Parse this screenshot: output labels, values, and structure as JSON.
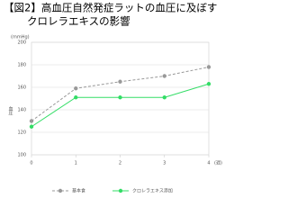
{
  "chart_data": {
    "type": "line",
    "title": [
      "【図2】高血圧自然発症ラットの血圧に及ぼす",
      "クロレラエキスの影響"
    ],
    "y_unit": "(mmHg)",
    "y_label": "血圧",
    "x_unit": "(週)",
    "x": [
      0,
      1,
      2,
      3,
      4
    ],
    "xlim": [
      0,
      4
    ],
    "xticks": [
      0,
      1,
      2,
      3,
      4
    ],
    "ylim": [
      100,
      200
    ],
    "yticks": [
      100,
      120,
      140,
      160,
      180,
      200
    ],
    "grid": true,
    "legend": "bottom",
    "series": [
      {
        "name": "基本食",
        "color": "#999999",
        "dashed": true,
        "values": [
          130,
          159,
          165,
          170,
          178
        ]
      },
      {
        "name": "クロレラエキス添加",
        "color": "#33dd66",
        "dashed": false,
        "values": [
          125,
          151,
          151,
          151,
          163
        ]
      }
    ]
  }
}
